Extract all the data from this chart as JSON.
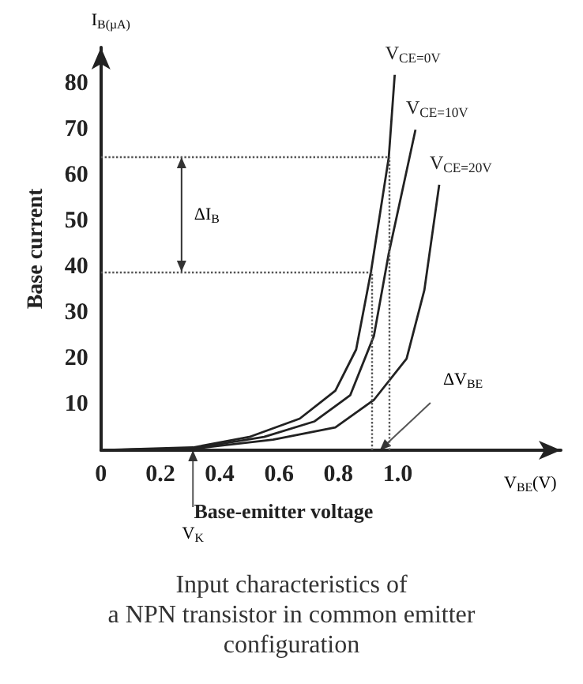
{
  "chart_data": {
    "type": "line",
    "title": "Input characteristics of\na NPN transistor in common emitter\nconfiguration",
    "xlabel": "Base-emitter voltage",
    "ylabel": "Base current",
    "marker": "none",
    "xlim": [
      0,
      1.55
    ],
    "ylim": [
      0,
      88
    ],
    "xticks": [
      0,
      0.2,
      0.4,
      0.6,
      0.8,
      {
        "value": 1,
        "label": "1.0"
      }
    ],
    "yticks": [
      10,
      20,
      30,
      40,
      50,
      60,
      70,
      80
    ],
    "series": [
      {
        "name": "V$_{CE=0V}$",
        "color": "#222222",
        "x": [
          0,
          0.31,
          0.5,
          0.67,
          0.79,
          0.86,
          0.91,
          0.97,
          0.99
        ],
        "values": [
          0,
          0.6,
          2.9,
          6.9,
          13,
          22,
          39,
          64,
          82
        ]
      },
      {
        "name": "V$_{CE=10V}$",
        "color": "#222222",
        "x": [
          0,
          0.31,
          0.55,
          0.72,
          0.84,
          0.92,
          0.97,
          1.03,
          1.06
        ],
        "values": [
          0,
          0.4,
          2.9,
          6.3,
          12,
          25,
          43,
          61,
          70
        ]
      },
      {
        "name": "V$_{CE=20V}$",
        "color": "#222222",
        "x": [
          0,
          0.31,
          0.58,
          0.79,
          0.92,
          1.03,
          1.09,
          1.14
        ],
        "values": [
          0,
          0.3,
          2.3,
          5,
          11,
          20,
          35,
          58
        ]
      }
    ],
    "ref_lines": [
      {
        "axis": "y",
        "value": 64,
        "color": "#555555",
        "line_style": "dotted"
      },
      {
        "axis": "y",
        "value": 39,
        "color": "#555555",
        "line_style": "dotted"
      },
      {
        "axis": "x",
        "value": 0.91,
        "color": "#555555",
        "line_style": "dotted"
      },
      {
        "axis": "x",
        "value": 0.97,
        "color": "#555555",
        "line_style": "dotted"
      }
    ],
    "annotations": [
      "I$_{B(µA)}$",
      "V$_{BE}$(V)",
      "ΔI$_{B}$",
      {
        "text": "ΔV$_{BE}$",
        "x": 0.94,
        "y": 0
      },
      {
        "text": "V$_{K}$",
        "x": 0.31,
        "y": 0
      }
    ]
  }
}
